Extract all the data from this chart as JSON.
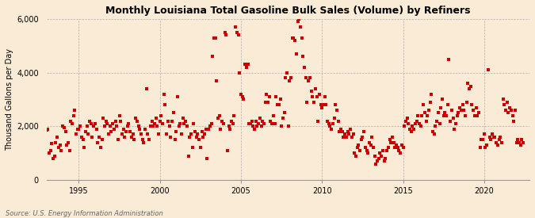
{
  "title": "Monthly Louisiana Total Gasoline Bulk Sales (Volume) by Refiners",
  "ylabel": "Thousand Gallons per Day",
  "source": "Source: U.S. Energy Information Administration",
  "background_color": "#faebd7",
  "dot_color": "#cc0000",
  "ylim": [
    0,
    6000
  ],
  "yticks": [
    0,
    2000,
    4000,
    6000
  ],
  "ytick_labels": [
    "0",
    "2,000",
    "4,000",
    "6,000"
  ],
  "xticks": [
    1995,
    2000,
    2005,
    2010,
    2015,
    2020
  ],
  "xmin": 1993.0,
  "xmax": 2022.8,
  "data": [
    [
      1993.0,
      1850
    ],
    [
      1993.08,
      1900
    ],
    [
      1993.17,
      1000
    ],
    [
      1993.25,
      1100
    ],
    [
      1993.33,
      1350
    ],
    [
      1993.42,
      800
    ],
    [
      1993.5,
      900
    ],
    [
      1993.58,
      1400
    ],
    [
      1993.67,
      1600
    ],
    [
      1993.75,
      1200
    ],
    [
      1993.83,
      1300
    ],
    [
      1993.92,
      1100
    ],
    [
      1994.0,
      2000
    ],
    [
      1994.08,
      1950
    ],
    [
      1994.17,
      1800
    ],
    [
      1994.25,
      1300
    ],
    [
      1994.33,
      1400
    ],
    [
      1994.42,
      1100
    ],
    [
      1994.5,
      2200
    ],
    [
      1994.58,
      2100
    ],
    [
      1994.67,
      2400
    ],
    [
      1994.75,
      2600
    ],
    [
      1994.83,
      1700
    ],
    [
      1994.92,
      1900
    ],
    [
      1995.0,
      1900
    ],
    [
      1995.08,
      2000
    ],
    [
      1995.17,
      1600
    ],
    [
      1995.25,
      1500
    ],
    [
      1995.33,
      1200
    ],
    [
      1995.42,
      1800
    ],
    [
      1995.5,
      2000
    ],
    [
      1995.58,
      1700
    ],
    [
      1995.67,
      2200
    ],
    [
      1995.75,
      2100
    ],
    [
      1995.83,
      1600
    ],
    [
      1995.92,
      2000
    ],
    [
      1996.0,
      2100
    ],
    [
      1996.08,
      1900
    ],
    [
      1996.17,
      1400
    ],
    [
      1996.25,
      1600
    ],
    [
      1996.33,
      1200
    ],
    [
      1996.42,
      1500
    ],
    [
      1996.5,
      2300
    ],
    [
      1996.58,
      2000
    ],
    [
      1996.67,
      2200
    ],
    [
      1996.75,
      2100
    ],
    [
      1996.83,
      1700
    ],
    [
      1996.92,
      2000
    ],
    [
      1997.0,
      1800
    ],
    [
      1997.08,
      2100
    ],
    [
      1997.17,
      1900
    ],
    [
      1997.25,
      2200
    ],
    [
      1997.33,
      2000
    ],
    [
      1997.42,
      1500
    ],
    [
      1997.5,
      2400
    ],
    [
      1997.58,
      2200
    ],
    [
      1997.67,
      1700
    ],
    [
      1997.75,
      1900
    ],
    [
      1997.83,
      1600
    ],
    [
      1997.92,
      1800
    ],
    [
      1998.0,
      2000
    ],
    [
      1998.08,
      2100
    ],
    [
      1998.17,
      1800
    ],
    [
      1998.25,
      1600
    ],
    [
      1998.33,
      1700
    ],
    [
      1998.42,
      1500
    ],
    [
      1998.5,
      2300
    ],
    [
      1998.58,
      2200
    ],
    [
      1998.67,
      2000
    ],
    [
      1998.75,
      1900
    ],
    [
      1998.83,
      1700
    ],
    [
      1998.92,
      1500
    ],
    [
      1999.0,
      1400
    ],
    [
      1999.08,
      1900
    ],
    [
      1999.17,
      3400
    ],
    [
      1999.25,
      1700
    ],
    [
      1999.33,
      1500
    ],
    [
      1999.42,
      2000
    ],
    [
      1999.5,
      2200
    ],
    [
      1999.58,
      2000
    ],
    [
      1999.67,
      2100
    ],
    [
      1999.75,
      2300
    ],
    [
      1999.83,
      2000
    ],
    [
      1999.92,
      1700
    ],
    [
      2000.0,
      2200
    ],
    [
      2000.08,
      2400
    ],
    [
      2000.17,
      2100
    ],
    [
      2000.25,
      3200
    ],
    [
      2000.33,
      2800
    ],
    [
      2000.42,
      1700
    ],
    [
      2000.5,
      2200
    ],
    [
      2000.58,
      2000
    ],
    [
      2000.67,
      1600
    ],
    [
      2000.75,
      2200
    ],
    [
      2000.83,
      2500
    ],
    [
      2000.92,
      1500
    ],
    [
      2001.0,
      1800
    ],
    [
      2001.08,
      3100
    ],
    [
      2001.17,
      2000
    ],
    [
      2001.25,
      2100
    ],
    [
      2001.33,
      1700
    ],
    [
      2001.42,
      2300
    ],
    [
      2001.5,
      2100
    ],
    [
      2001.58,
      2200
    ],
    [
      2001.67,
      2000
    ],
    [
      2001.75,
      900
    ],
    [
      2001.83,
      1600
    ],
    [
      2001.92,
      1700
    ],
    [
      2002.0,
      1200
    ],
    [
      2002.08,
      2100
    ],
    [
      2002.17,
      1800
    ],
    [
      2002.25,
      1600
    ],
    [
      2002.33,
      1700
    ],
    [
      2002.42,
      1500
    ],
    [
      2002.5,
      1200
    ],
    [
      2002.58,
      1800
    ],
    [
      2002.67,
      1600
    ],
    [
      2002.75,
      1700
    ],
    [
      2002.83,
      1900
    ],
    [
      2002.92,
      800
    ],
    [
      2003.0,
      1900
    ],
    [
      2003.08,
      2000
    ],
    [
      2003.17,
      2100
    ],
    [
      2003.25,
      4600
    ],
    [
      2003.33,
      5300
    ],
    [
      2003.42,
      5300
    ],
    [
      2003.5,
      3700
    ],
    [
      2003.58,
      2300
    ],
    [
      2003.67,
      2400
    ],
    [
      2003.75,
      1900
    ],
    [
      2003.83,
      2200
    ],
    [
      2003.92,
      2100
    ],
    [
      2004.0,
      5500
    ],
    [
      2004.08,
      5400
    ],
    [
      2004.17,
      1100
    ],
    [
      2004.25,
      2000
    ],
    [
      2004.33,
      1900
    ],
    [
      2004.42,
      2200
    ],
    [
      2004.5,
      2100
    ],
    [
      2004.58,
      2400
    ],
    [
      2004.67,
      5700
    ],
    [
      2004.75,
      5500
    ],
    [
      2004.83,
      5400
    ],
    [
      2004.92,
      4000
    ],
    [
      2005.0,
      3200
    ],
    [
      2005.08,
      3100
    ],
    [
      2005.17,
      3000
    ],
    [
      2005.25,
      4300
    ],
    [
      2005.33,
      4200
    ],
    [
      2005.42,
      4300
    ],
    [
      2005.5,
      2100
    ],
    [
      2005.58,
      2100
    ],
    [
      2005.67,
      2200
    ],
    [
      2005.75,
      2000
    ],
    [
      2005.83,
      1900
    ],
    [
      2005.92,
      2200
    ],
    [
      2006.0,
      2000
    ],
    [
      2006.08,
      2100
    ],
    [
      2006.17,
      2300
    ],
    [
      2006.25,
      2000
    ],
    [
      2006.33,
      2200
    ],
    [
      2006.42,
      2100
    ],
    [
      2006.5,
      2900
    ],
    [
      2006.58,
      3200
    ],
    [
      2006.67,
      2900
    ],
    [
      2006.75,
      3100
    ],
    [
      2006.83,
      2200
    ],
    [
      2006.92,
      2100
    ],
    [
      2007.0,
      2400
    ],
    [
      2007.08,
      2100
    ],
    [
      2007.17,
      3100
    ],
    [
      2007.25,
      2800
    ],
    [
      2007.33,
      2800
    ],
    [
      2007.42,
      3000
    ],
    [
      2007.5,
      2000
    ],
    [
      2007.58,
      2300
    ],
    [
      2007.67,
      2500
    ],
    [
      2007.75,
      3800
    ],
    [
      2007.83,
      4000
    ],
    [
      2007.92,
      2000
    ],
    [
      2008.0,
      3700
    ],
    [
      2008.08,
      3800
    ],
    [
      2008.17,
      5300
    ],
    [
      2008.25,
      5300
    ],
    [
      2008.33,
      5200
    ],
    [
      2008.42,
      4700
    ],
    [
      2008.5,
      5900
    ],
    [
      2008.58,
      6000
    ],
    [
      2008.67,
      5700
    ],
    [
      2008.75,
      5300
    ],
    [
      2008.83,
      4600
    ],
    [
      2008.92,
      4200
    ],
    [
      2009.0,
      3800
    ],
    [
      2009.08,
      2900
    ],
    [
      2009.17,
      3700
    ],
    [
      2009.25,
      3800
    ],
    [
      2009.33,
      3300
    ],
    [
      2009.42,
      3100
    ],
    [
      2009.5,
      2900
    ],
    [
      2009.58,
      3400
    ],
    [
      2009.67,
      3100
    ],
    [
      2009.75,
      2200
    ],
    [
      2009.83,
      3200
    ],
    [
      2009.92,
      2800
    ],
    [
      2010.0,
      2700
    ],
    [
      2010.08,
      2800
    ],
    [
      2010.17,
      3100
    ],
    [
      2010.25,
      2800
    ],
    [
      2010.33,
      2200
    ],
    [
      2010.42,
      2100
    ],
    [
      2010.5,
      2000
    ],
    [
      2010.58,
      1900
    ],
    [
      2010.67,
      2100
    ],
    [
      2010.75,
      2300
    ],
    [
      2010.83,
      2800
    ],
    [
      2010.92,
      2600
    ],
    [
      2011.0,
      2200
    ],
    [
      2011.08,
      1800
    ],
    [
      2011.17,
      1900
    ],
    [
      2011.25,
      1800
    ],
    [
      2011.33,
      1600
    ],
    [
      2011.42,
      1700
    ],
    [
      2011.5,
      1600
    ],
    [
      2011.58,
      1800
    ],
    [
      2011.67,
      1700
    ],
    [
      2011.75,
      1900
    ],
    [
      2011.83,
      1600
    ],
    [
      2011.92,
      1700
    ],
    [
      2012.0,
      1000
    ],
    [
      2012.08,
      900
    ],
    [
      2012.17,
      1200
    ],
    [
      2012.25,
      1300
    ],
    [
      2012.33,
      1100
    ],
    [
      2012.42,
      1500
    ],
    [
      2012.5,
      1600
    ],
    [
      2012.58,
      1800
    ],
    [
      2012.67,
      1200
    ],
    [
      2012.75,
      1100
    ],
    [
      2012.83,
      1000
    ],
    [
      2012.92,
      1400
    ],
    [
      2013.0,
      1300
    ],
    [
      2013.08,
      1600
    ],
    [
      2013.17,
      1200
    ],
    [
      2013.25,
      900
    ],
    [
      2013.33,
      600
    ],
    [
      2013.42,
      700
    ],
    [
      2013.5,
      800
    ],
    [
      2013.58,
      1000
    ],
    [
      2013.67,
      900
    ],
    [
      2013.75,
      1100
    ],
    [
      2013.83,
      700
    ],
    [
      2013.92,
      800
    ],
    [
      2014.0,
      1100
    ],
    [
      2014.08,
      1200
    ],
    [
      2014.17,
      1500
    ],
    [
      2014.25,
      1400
    ],
    [
      2014.33,
      1600
    ],
    [
      2014.42,
      1400
    ],
    [
      2014.5,
      1200
    ],
    [
      2014.58,
      1300
    ],
    [
      2014.67,
      1200
    ],
    [
      2014.75,
      1100
    ],
    [
      2014.83,
      1000
    ],
    [
      2014.92,
      1300
    ],
    [
      2015.0,
      1200
    ],
    [
      2015.08,
      2000
    ],
    [
      2015.17,
      2200
    ],
    [
      2015.25,
      2300
    ],
    [
      2015.33,
      2100
    ],
    [
      2015.42,
      1900
    ],
    [
      2015.5,
      1800
    ],
    [
      2015.58,
      2000
    ],
    [
      2015.67,
      1900
    ],
    [
      2015.75,
      2100
    ],
    [
      2015.83,
      2200
    ],
    [
      2015.92,
      2400
    ],
    [
      2016.0,
      2100
    ],
    [
      2016.08,
      2000
    ],
    [
      2016.17,
      2400
    ],
    [
      2016.25,
      2800
    ],
    [
      2016.33,
      2500
    ],
    [
      2016.42,
      2200
    ],
    [
      2016.5,
      2400
    ],
    [
      2016.58,
      2600
    ],
    [
      2016.67,
      2900
    ],
    [
      2016.75,
      3200
    ],
    [
      2016.83,
      1800
    ],
    [
      2016.92,
      1700
    ],
    [
      2017.0,
      2000
    ],
    [
      2017.08,
      2200
    ],
    [
      2017.17,
      2500
    ],
    [
      2017.25,
      2100
    ],
    [
      2017.33,
      2700
    ],
    [
      2017.42,
      3000
    ],
    [
      2017.5,
      2400
    ],
    [
      2017.58,
      2500
    ],
    [
      2017.67,
      2400
    ],
    [
      2017.75,
      2800
    ],
    [
      2017.83,
      4500
    ],
    [
      2017.92,
      2200
    ],
    [
      2018.0,
      2600
    ],
    [
      2018.08,
      2300
    ],
    [
      2018.17,
      1900
    ],
    [
      2018.25,
      2100
    ],
    [
      2018.33,
      2400
    ],
    [
      2018.42,
      2500
    ],
    [
      2018.5,
      2700
    ],
    [
      2018.58,
      2600
    ],
    [
      2018.67,
      2800
    ],
    [
      2018.75,
      2600
    ],
    [
      2018.83,
      2400
    ],
    [
      2018.92,
      2900
    ],
    [
      2019.0,
      3600
    ],
    [
      2019.08,
      3400
    ],
    [
      2019.17,
      3500
    ],
    [
      2019.25,
      2800
    ],
    [
      2019.33,
      2600
    ],
    [
      2019.42,
      2400
    ],
    [
      2019.5,
      2700
    ],
    [
      2019.58,
      2400
    ],
    [
      2019.67,
      2500
    ],
    [
      2019.75,
      1200
    ],
    [
      2019.83,
      1500
    ],
    [
      2019.92,
      1500
    ],
    [
      2020.0,
      1700
    ],
    [
      2020.08,
      1200
    ],
    [
      2020.17,
      1300
    ],
    [
      2020.25,
      4100
    ],
    [
      2020.33,
      1600
    ],
    [
      2020.42,
      1500
    ],
    [
      2020.5,
      1700
    ],
    [
      2020.58,
      1600
    ],
    [
      2020.67,
      1600
    ],
    [
      2020.75,
      1400
    ],
    [
      2020.83,
      1300
    ],
    [
      2020.92,
      1500
    ],
    [
      2021.0,
      1600
    ],
    [
      2021.08,
      1400
    ],
    [
      2021.17,
      3000
    ],
    [
      2021.25,
      2800
    ],
    [
      2021.33,
      2600
    ],
    [
      2021.42,
      2900
    ],
    [
      2021.5,
      2500
    ],
    [
      2021.58,
      2700
    ],
    [
      2021.67,
      2600
    ],
    [
      2021.75,
      2400
    ],
    [
      2021.83,
      2200
    ],
    [
      2021.92,
      2600
    ],
    [
      2022.0,
      1400
    ],
    [
      2022.08,
      1500
    ],
    [
      2022.17,
      1400
    ],
    [
      2022.25,
      1300
    ],
    [
      2022.33,
      1500
    ],
    [
      2022.42,
      1400
    ]
  ]
}
